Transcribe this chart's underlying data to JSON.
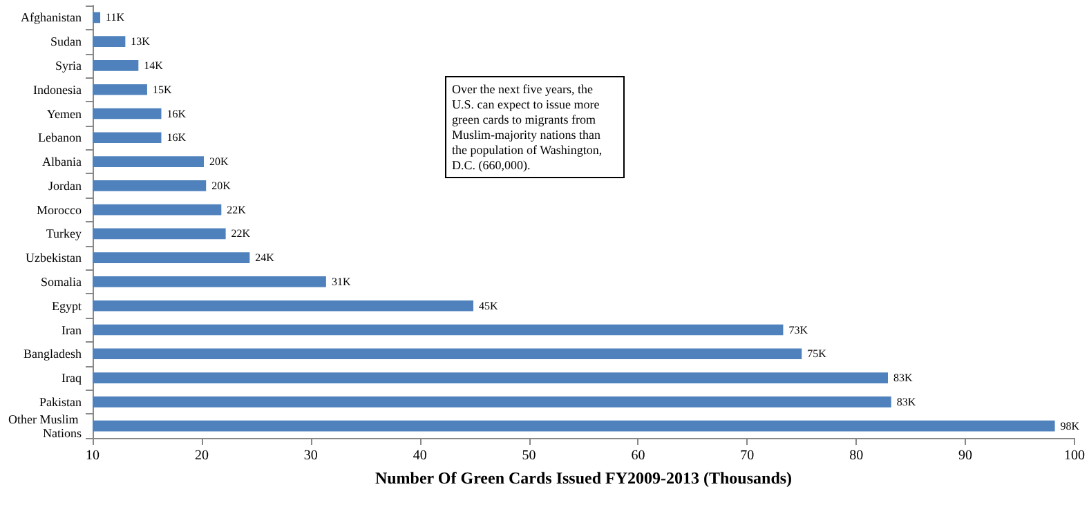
{
  "chart_data": {
    "type": "bar",
    "orientation": "horizontal",
    "xlabel": "Number Of Green Cards Issued FY2009-2013 (Thousands)",
    "categories": [
      "Afghanistan",
      "Sudan",
      "Syria",
      "Indonesia",
      "Yemen",
      "Lebanon",
      "Albania",
      "Jordan",
      "Morocco",
      "Turkey",
      "Uzbekistan",
      "Somalia",
      "Egypt",
      "Iran",
      "Bangladesh",
      "Iraq",
      "Pakistan",
      "Other Muslim Nations"
    ],
    "values": [
      10.7,
      13,
      14.2,
      15,
      16.3,
      16.3,
      20.2,
      20.4,
      21.8,
      22.2,
      24.4,
      31.4,
      44.9,
      73.3,
      75,
      82.9,
      83.2,
      98.2
    ],
    "value_labels": [
      "11K",
      "13K",
      "14K",
      "15K",
      "16K",
      "16K",
      "20K",
      "20K",
      "22K",
      "22K",
      "24K",
      "31K",
      "45K",
      "73K",
      "75K",
      "83K",
      "83K",
      "98K"
    ],
    "color": "#4f81bd",
    "xlim": [
      10,
      100
    ],
    "xticks": [
      10,
      20,
      30,
      40,
      50,
      60,
      70,
      80,
      90,
      100
    ],
    "grid": false,
    "annotations": [
      "Over the next five years, the U.S. can expect to issue more green cards to migrants from Muslim-majority nations than the population of Washington, D.C. (660,000)."
    ]
  }
}
